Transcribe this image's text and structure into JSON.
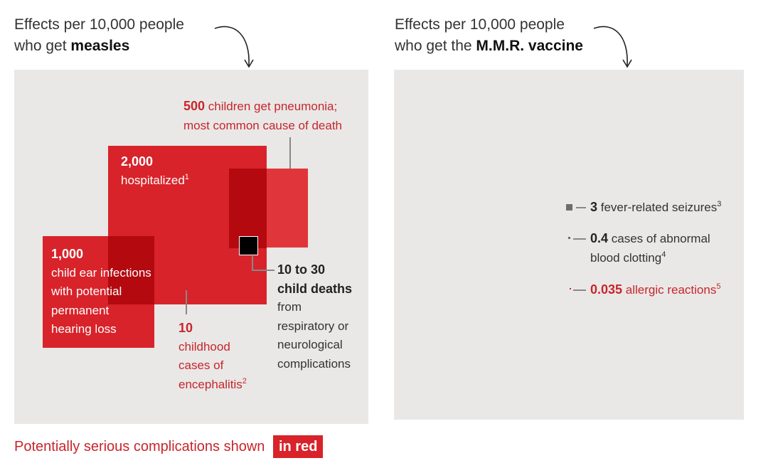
{
  "left": {
    "heading_line1": "Effects per 10,000 people",
    "heading_line2_prefix": "who get ",
    "heading_line2_bold": "measles"
  },
  "right": {
    "heading_line1": "Effects per 10,000 people",
    "heading_line2_prefix": "who get the ",
    "heading_line2_bold": "M.M.R. vaccine"
  },
  "colors": {
    "red": "#d8232a",
    "dark_red": "#b3090f",
    "black": "#000000",
    "panel": "#e9e8e6",
    "gray_square": "#6d6d6d"
  },
  "chart_data": [
    {
      "type": "proportional-squares",
      "panel": "measles",
      "items": [
        {
          "value": 2000,
          "num_label": "2,000",
          "text": [
            "hospitalized"
          ],
          "footnote": "1",
          "color": "red"
        },
        {
          "value": 1000,
          "num_label": "1,000",
          "text": [
            "child ear infections",
            "with potential",
            "permanent",
            "hearing loss"
          ],
          "footnote": "",
          "color": "red"
        },
        {
          "value": 500,
          "num_label": "500",
          "text": [
            "children get pneumonia;",
            "most common cause of death"
          ],
          "footnote": "",
          "color": "red"
        },
        {
          "value": 10,
          "num_label": "10",
          "text": [
            "childhood",
            "cases of",
            "encephalitis"
          ],
          "footnote": "2",
          "color": "red"
        },
        {
          "value": 30,
          "num_label": "10 to 30",
          "bold_line2": "child deaths",
          "text": [
            "from",
            "respiratory or",
            "neurological",
            "complications"
          ],
          "footnote": "",
          "color": "black"
        }
      ]
    },
    {
      "type": "proportional-squares",
      "panel": "mmr-vaccine",
      "items": [
        {
          "value": 3,
          "num_label": "3",
          "text": [
            "fever-related seizures"
          ],
          "footnote": "3",
          "color": "gray"
        },
        {
          "value": 0.4,
          "num_label": "0.4",
          "text": [
            "cases of abnormal",
            "blood clotting"
          ],
          "footnote": "4",
          "color": "gray"
        },
        {
          "value": 0.035,
          "num_label": "0.035",
          "text": [
            "allergic reactions"
          ],
          "footnote": "5",
          "color": "red"
        }
      ]
    }
  ],
  "legend": {
    "text": "Potentially serious complications shown",
    "box": "in red"
  }
}
